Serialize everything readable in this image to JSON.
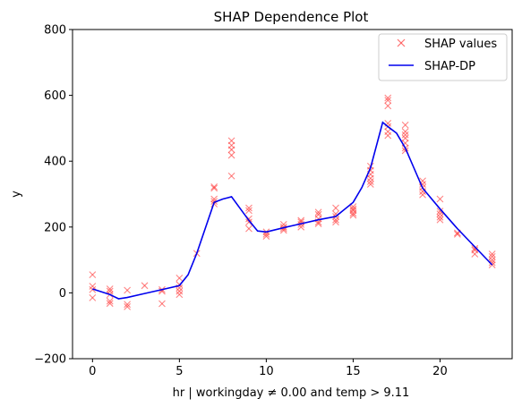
{
  "chart_data": {
    "type": "line",
    "title": "SHAP Dependence Plot",
    "xlabel": "hr | workingday ≠ 0.00 and temp > 9.11",
    "ylabel": "y",
    "xlim": [
      -1.15,
      24.15
    ],
    "ylim": [
      -200,
      800
    ],
    "xticks": [
      0,
      5,
      10,
      15,
      20
    ],
    "yticks": [
      -200,
      0,
      200,
      400,
      600,
      800
    ],
    "legend_position": "top-right",
    "grid": false,
    "series": [
      {
        "name": "SHAP values",
        "kind": "scatter",
        "marker": "x",
        "color": "#ff3333",
        "points": [
          [
            0,
            55
          ],
          [
            0,
            20
          ],
          [
            0,
            10
          ],
          [
            0,
            -15
          ],
          [
            1,
            12
          ],
          [
            1,
            5
          ],
          [
            1,
            -5
          ],
          [
            1,
            -25
          ],
          [
            1,
            -32
          ],
          [
            2,
            8
          ],
          [
            2,
            -35
          ],
          [
            2,
            -42
          ],
          [
            3,
            22
          ],
          [
            4,
            10
          ],
          [
            4,
            5
          ],
          [
            4,
            -33
          ],
          [
            5,
            45
          ],
          [
            5,
            25
          ],
          [
            5,
            15
          ],
          [
            5,
            5
          ],
          [
            5,
            -5
          ],
          [
            6,
            120
          ],
          [
            7,
            322
          ],
          [
            7,
            318
          ],
          [
            7,
            285
          ],
          [
            7,
            278
          ],
          [
            7,
            270
          ],
          [
            8,
            462
          ],
          [
            8,
            448
          ],
          [
            8,
            435
          ],
          [
            8,
            418
          ],
          [
            8,
            355
          ],
          [
            9,
            258
          ],
          [
            9,
            250
          ],
          [
            9,
            225
          ],
          [
            9,
            215
          ],
          [
            9,
            195
          ],
          [
            10,
            185
          ],
          [
            10,
            178
          ],
          [
            10,
            172
          ],
          [
            11,
            208
          ],
          [
            11,
            200
          ],
          [
            11,
            195
          ],
          [
            11,
            190
          ],
          [
            12,
            220
          ],
          [
            12,
            215
          ],
          [
            12,
            208
          ],
          [
            12,
            200
          ],
          [
            13,
            245
          ],
          [
            13,
            238
          ],
          [
            13,
            225
          ],
          [
            13,
            215
          ],
          [
            13,
            210
          ],
          [
            14,
            258
          ],
          [
            14,
            240
          ],
          [
            14,
            232
          ],
          [
            14,
            222
          ],
          [
            14,
            215
          ],
          [
            15,
            262
          ],
          [
            15,
            255
          ],
          [
            15,
            250
          ],
          [
            15,
            242
          ],
          [
            15,
            236
          ],
          [
            16,
            385
          ],
          [
            16,
            372
          ],
          [
            16,
            360
          ],
          [
            16,
            348
          ],
          [
            16,
            338
          ],
          [
            16,
            330
          ],
          [
            17,
            592
          ],
          [
            17,
            585
          ],
          [
            17,
            568
          ],
          [
            17,
            515
          ],
          [
            17,
            505
          ],
          [
            17,
            490
          ],
          [
            17,
            478
          ],
          [
            18,
            510
          ],
          [
            18,
            490
          ],
          [
            18,
            480
          ],
          [
            18,
            470
          ],
          [
            18,
            455
          ],
          [
            18,
            440
          ],
          [
            18,
            432
          ],
          [
            19,
            340
          ],
          [
            19,
            330
          ],
          [
            19,
            320
          ],
          [
            19,
            308
          ],
          [
            19,
            298
          ],
          [
            20,
            285
          ],
          [
            20,
            248
          ],
          [
            20,
            240
          ],
          [
            20,
            230
          ],
          [
            20,
            222
          ],
          [
            21,
            182
          ],
          [
            21,
            178
          ],
          [
            22,
            135
          ],
          [
            22,
            130
          ],
          [
            22,
            118
          ],
          [
            23,
            118
          ],
          [
            23,
            110
          ],
          [
            23,
            100
          ],
          [
            23,
            92
          ],
          [
            23,
            85
          ]
        ]
      },
      {
        "name": "SHAP-DP",
        "kind": "line",
        "color": "#0000ee",
        "points": [
          [
            0,
            12
          ],
          [
            1,
            -5
          ],
          [
            1.5,
            -18
          ],
          [
            2,
            -14
          ],
          [
            3,
            -2
          ],
          [
            4,
            10
          ],
          [
            5,
            22
          ],
          [
            5.5,
            55
          ],
          [
            6,
            120
          ],
          [
            7,
            275
          ],
          [
            7.5,
            285
          ],
          [
            8,
            292
          ],
          [
            9,
            220
          ],
          [
            9.5,
            188
          ],
          [
            10,
            185
          ],
          [
            11,
            198
          ],
          [
            12,
            210
          ],
          [
            13,
            222
          ],
          [
            14,
            232
          ],
          [
            15,
            275
          ],
          [
            15.5,
            320
          ],
          [
            16,
            380
          ],
          [
            16.7,
            518
          ],
          [
            17,
            505
          ],
          [
            17.5,
            485
          ],
          [
            18,
            440
          ],
          [
            19,
            318
          ],
          [
            20,
            255
          ],
          [
            21,
            195
          ],
          [
            22,
            140
          ],
          [
            23,
            85
          ]
        ]
      }
    ]
  }
}
